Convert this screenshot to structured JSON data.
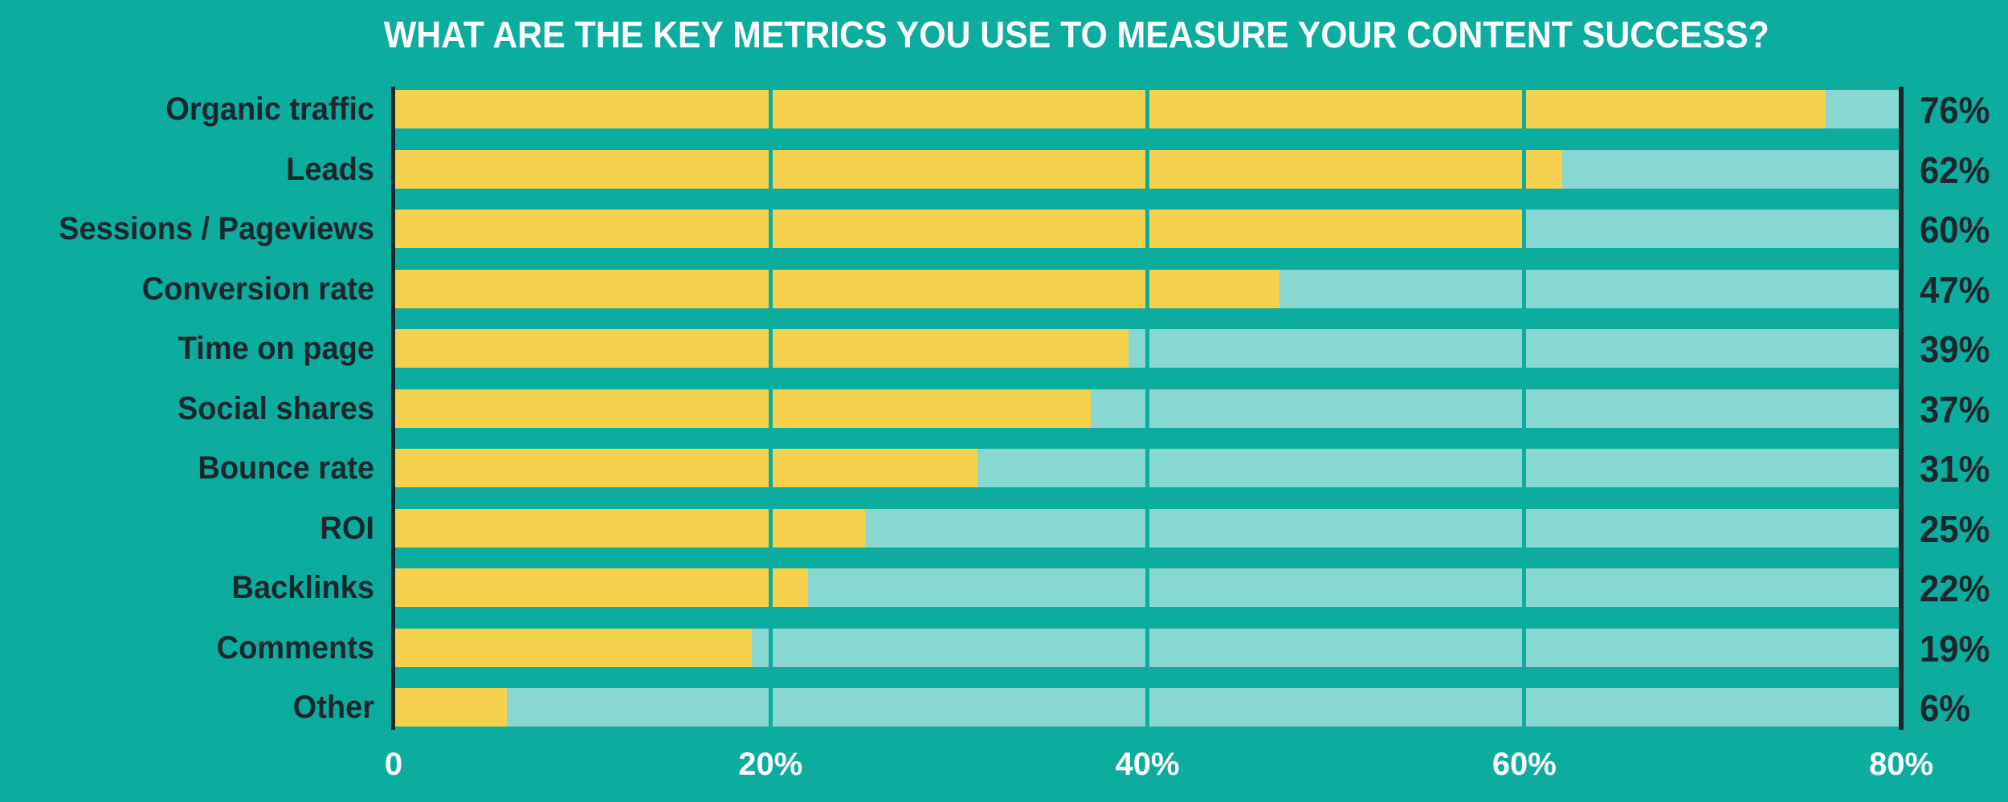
{
  "chart_data": {
    "type": "bar",
    "orientation": "horizontal",
    "title": "WHAT ARE THE KEY METRICS YOU USE TO MEASURE YOUR CONTENT SUCCESS?",
    "categories": [
      "Organic traffic",
      "Leads",
      "Sessions / Pageviews",
      "Conversion rate",
      "Time on page",
      "Social shares",
      "Bounce rate",
      "ROI",
      "Backlinks",
      "Comments",
      "Other"
    ],
    "values": [
      76,
      62,
      60,
      47,
      39,
      37,
      31,
      25,
      22,
      19,
      6
    ],
    "value_labels": [
      "76%",
      "62%",
      "60%",
      "47%",
      "39%",
      "37%",
      "31%",
      "25%",
      "22%",
      "19%",
      "6%"
    ],
    "xlabel": "",
    "ylabel": "",
    "xlim": [
      0,
      80
    ],
    "x_ticks": [
      {
        "value": 0,
        "label": "0"
      },
      {
        "value": 20,
        "label": "20%"
      },
      {
        "value": 40,
        "label": "40%"
      },
      {
        "value": 60,
        "label": "60%"
      },
      {
        "value": 80,
        "label": "80%"
      }
    ],
    "gridlines": {
      "vertical_at": [
        20,
        40,
        60
      ],
      "color_matches_background": true
    },
    "axis_lines": {
      "left_at": 0,
      "right_at": 80
    },
    "legend": false,
    "colors": {
      "background": "#0CAC9F",
      "bar_fill": "#F6D14E",
      "bar_track": "#87D7D2",
      "text_dark": "#1C272B",
      "text_light": "#FFFFFF"
    }
  }
}
